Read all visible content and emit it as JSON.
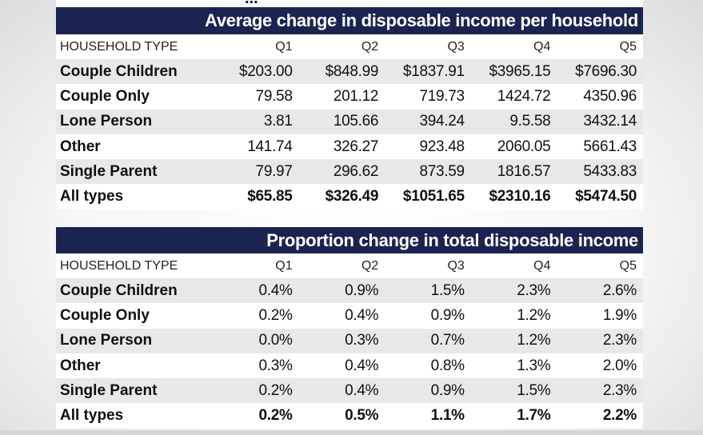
{
  "clipped_heading": "...",
  "income_table": {
    "title": "Average change in disposable income per household",
    "headers": [
      "HOUSEHOLD TYPE",
      "Q1",
      "Q2",
      "Q3",
      "Q4",
      "Q5"
    ],
    "rows": [
      {
        "label": "Couple Children",
        "values": [
          "$203.00",
          "$848.99",
          "$1837.91",
          "$3965.15",
          "$7696.30"
        ]
      },
      {
        "label": "Couple Only",
        "values": [
          "79.58",
          "201.12",
          "719.73",
          "1424.72",
          "4350.96"
        ]
      },
      {
        "label": "Lone Person",
        "values": [
          "3.81",
          "105.66",
          "394.24",
          "9.5.58",
          "3432.14"
        ]
      },
      {
        "label": "Other",
        "values": [
          "141.74",
          "326.27",
          "923.48",
          "2060.05",
          "5661.43"
        ]
      },
      {
        "label": "Single Parent",
        "values": [
          "79.97",
          "296.62",
          "873.59",
          "1816.57",
          "5433.83"
        ]
      },
      {
        "label": "All types",
        "values": [
          "$65.85",
          "$326.49",
          "$1051.65",
          "$2310.16",
          "$5474.50"
        ]
      }
    ]
  },
  "proportion_table": {
    "title": "Proportion change in total disposable income",
    "headers": [
      "HOUSEHOLD TYPE",
      "Q1",
      "Q2",
      "Q3",
      "Q4",
      "Q5"
    ],
    "rows": [
      {
        "label": "Couple Children",
        "values": [
          "0.4%",
          "0.9%",
          "1.5%",
          "2.3%",
          "2.6%"
        ]
      },
      {
        "label": "Couple Only",
        "values": [
          "0.2%",
          "0.4%",
          "0.9%",
          "1.2%",
          "1.9%"
        ]
      },
      {
        "label": "Lone Person",
        "values": [
          "0.0%",
          "0.3%",
          "0.7%",
          "1.2%",
          "2.3%"
        ]
      },
      {
        "label": "Other",
        "values": [
          "0.3%",
          "0.4%",
          "0.8%",
          "1.3%",
          "2.0%"
        ]
      },
      {
        "label": "Single Parent",
        "values": [
          "0.2%",
          "0.4%",
          "0.9%",
          "1.5%",
          "2.3%"
        ]
      },
      {
        "label": "All types",
        "values": [
          "0.2%",
          "0.5%",
          "1.1%",
          "1.7%",
          "2.2%"
        ]
      }
    ]
  }
}
